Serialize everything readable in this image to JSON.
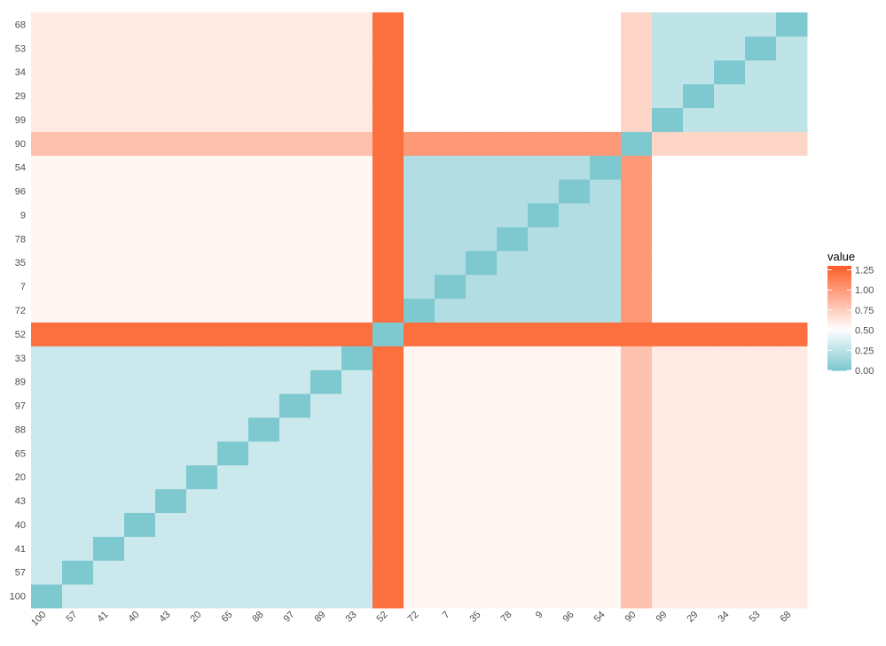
{
  "chart_data": {
    "type": "heatmap",
    "categories": [
      "100",
      "57",
      "41",
      "40",
      "43",
      "20",
      "65",
      "88",
      "97",
      "89",
      "33",
      "52",
      "72",
      "7",
      "35",
      "78",
      "9",
      "96",
      "54",
      "90",
      "99",
      "29",
      "34",
      "53",
      "68"
    ],
    "values": [
      [
        0,
        0.3,
        0.3,
        0.3,
        0.3,
        0.3,
        0.3,
        0.3,
        0.3,
        0.3,
        0.3,
        1.2,
        0.55,
        0.55,
        0.55,
        0.55,
        0.55,
        0.55,
        0.55,
        0.8,
        0.6,
        0.6,
        0.6,
        0.6,
        0.6
      ],
      [
        0.3,
        0,
        0.3,
        0.3,
        0.3,
        0.3,
        0.3,
        0.3,
        0.3,
        0.3,
        0.3,
        1.2,
        0.55,
        0.55,
        0.55,
        0.55,
        0.55,
        0.55,
        0.55,
        0.8,
        0.6,
        0.6,
        0.6,
        0.6,
        0.6
      ],
      [
        0.3,
        0.3,
        0,
        0.3,
        0.3,
        0.3,
        0.3,
        0.3,
        0.3,
        0.3,
        0.3,
        1.2,
        0.55,
        0.55,
        0.55,
        0.55,
        0.55,
        0.55,
        0.55,
        0.8,
        0.6,
        0.6,
        0.6,
        0.6,
        0.6
      ],
      [
        0.3,
        0.3,
        0.3,
        0,
        0.3,
        0.3,
        0.3,
        0.3,
        0.3,
        0.3,
        0.3,
        1.2,
        0.55,
        0.55,
        0.55,
        0.55,
        0.55,
        0.55,
        0.55,
        0.8,
        0.6,
        0.6,
        0.6,
        0.6,
        0.6
      ],
      [
        0.3,
        0.3,
        0.3,
        0.3,
        0,
        0.3,
        0.3,
        0.3,
        0.3,
        0.3,
        0.3,
        1.2,
        0.55,
        0.55,
        0.55,
        0.55,
        0.55,
        0.55,
        0.55,
        0.8,
        0.6,
        0.6,
        0.6,
        0.6,
        0.6
      ],
      [
        0.3,
        0.3,
        0.3,
        0.3,
        0.3,
        0,
        0.3,
        0.3,
        0.3,
        0.3,
        0.3,
        1.2,
        0.55,
        0.55,
        0.55,
        0.55,
        0.55,
        0.55,
        0.55,
        0.8,
        0.6,
        0.6,
        0.6,
        0.6,
        0.6
      ],
      [
        0.3,
        0.3,
        0.3,
        0.3,
        0.3,
        0.3,
        0,
        0.3,
        0.3,
        0.3,
        0.3,
        1.2,
        0.55,
        0.55,
        0.55,
        0.55,
        0.55,
        0.55,
        0.55,
        0.8,
        0.6,
        0.6,
        0.6,
        0.6,
        0.6
      ],
      [
        0.3,
        0.3,
        0.3,
        0.3,
        0.3,
        0.3,
        0.3,
        0,
        0.3,
        0.3,
        0.3,
        1.2,
        0.55,
        0.55,
        0.55,
        0.55,
        0.55,
        0.55,
        0.55,
        0.8,
        0.6,
        0.6,
        0.6,
        0.6,
        0.6
      ],
      [
        0.3,
        0.3,
        0.3,
        0.3,
        0.3,
        0.3,
        0.3,
        0.3,
        0,
        0.3,
        0.3,
        1.2,
        0.55,
        0.55,
        0.55,
        0.55,
        0.55,
        0.55,
        0.55,
        0.8,
        0.6,
        0.6,
        0.6,
        0.6,
        0.6
      ],
      [
        0.3,
        0.3,
        0.3,
        0.3,
        0.3,
        0.3,
        0.3,
        0.3,
        0.3,
        0,
        0.3,
        1.2,
        0.55,
        0.55,
        0.55,
        0.55,
        0.55,
        0.55,
        0.55,
        0.8,
        0.6,
        0.6,
        0.6,
        0.6,
        0.6
      ],
      [
        0.3,
        0.3,
        0.3,
        0.3,
        0.3,
        0.3,
        0.3,
        0.3,
        0.3,
        0.3,
        0,
        1.2,
        0.55,
        0.55,
        0.55,
        0.55,
        0.55,
        0.55,
        0.55,
        0.8,
        0.6,
        0.6,
        0.6,
        0.6,
        0.6
      ],
      [
        1.2,
        1.2,
        1.2,
        1.2,
        1.2,
        1.2,
        1.2,
        1.2,
        1.2,
        1.2,
        1.2,
        0,
        1.2,
        1.2,
        1.2,
        1.2,
        1.2,
        1.2,
        1.2,
        1.2,
        1.2,
        1.2,
        1.2,
        1.2,
        1.2
      ],
      [
        0.55,
        0.55,
        0.55,
        0.55,
        0.55,
        0.55,
        0.55,
        0.55,
        0.55,
        0.55,
        0.55,
        1.2,
        0,
        0.2,
        0.2,
        0.2,
        0.2,
        0.2,
        0.2,
        1.0,
        0.5,
        0.5,
        0.5,
        0.5,
        0.5
      ],
      [
        0.55,
        0.55,
        0.55,
        0.55,
        0.55,
        0.55,
        0.55,
        0.55,
        0.55,
        0.55,
        0.55,
        1.2,
        0.2,
        0,
        0.2,
        0.2,
        0.2,
        0.2,
        0.2,
        1.0,
        0.5,
        0.5,
        0.5,
        0.5,
        0.5
      ],
      [
        0.55,
        0.55,
        0.55,
        0.55,
        0.55,
        0.55,
        0.55,
        0.55,
        0.55,
        0.55,
        0.55,
        1.2,
        0.2,
        0.2,
        0,
        0.2,
        0.2,
        0.2,
        0.2,
        1.0,
        0.5,
        0.5,
        0.5,
        0.5,
        0.5
      ],
      [
        0.55,
        0.55,
        0.55,
        0.55,
        0.55,
        0.55,
        0.55,
        0.55,
        0.55,
        0.55,
        0.55,
        1.2,
        0.2,
        0.2,
        0.2,
        0,
        0.2,
        0.2,
        0.2,
        1.0,
        0.5,
        0.5,
        0.5,
        0.5,
        0.5
      ],
      [
        0.55,
        0.55,
        0.55,
        0.55,
        0.55,
        0.55,
        0.55,
        0.55,
        0.55,
        0.55,
        0.55,
        1.2,
        0.2,
        0.2,
        0.2,
        0.2,
        0,
        0.2,
        0.2,
        1.0,
        0.5,
        0.5,
        0.5,
        0.5,
        0.5
      ],
      [
        0.55,
        0.55,
        0.55,
        0.55,
        0.55,
        0.55,
        0.55,
        0.55,
        0.55,
        0.55,
        0.55,
        1.2,
        0.2,
        0.2,
        0.2,
        0.2,
        0.2,
        0,
        0.2,
        1.0,
        0.5,
        0.5,
        0.5,
        0.5,
        0.5
      ],
      [
        0.55,
        0.55,
        0.55,
        0.55,
        0.55,
        0.55,
        0.55,
        0.55,
        0.55,
        0.55,
        0.55,
        1.2,
        0.2,
        0.2,
        0.2,
        0.2,
        0.2,
        0.2,
        0,
        1.0,
        0.5,
        0.5,
        0.5,
        0.5,
        0.5
      ],
      [
        0.8,
        0.8,
        0.8,
        0.8,
        0.8,
        0.8,
        0.8,
        0.8,
        0.8,
        0.8,
        0.8,
        1.2,
        1.0,
        1.0,
        1.0,
        1.0,
        1.0,
        1.0,
        1.0,
        0,
        0.7,
        0.7,
        0.7,
        0.7,
        0.7
      ],
      [
        0.6,
        0.6,
        0.6,
        0.6,
        0.6,
        0.6,
        0.6,
        0.6,
        0.6,
        0.6,
        0.6,
        1.2,
        0.5,
        0.5,
        0.5,
        0.5,
        0.5,
        0.5,
        0.5,
        0.7,
        0,
        0.25,
        0.25,
        0.25,
        0.25
      ],
      [
        0.6,
        0.6,
        0.6,
        0.6,
        0.6,
        0.6,
        0.6,
        0.6,
        0.6,
        0.6,
        0.6,
        1.2,
        0.5,
        0.5,
        0.5,
        0.5,
        0.5,
        0.5,
        0.5,
        0.7,
        0.25,
        0,
        0.25,
        0.25,
        0.25
      ],
      [
        0.6,
        0.6,
        0.6,
        0.6,
        0.6,
        0.6,
        0.6,
        0.6,
        0.6,
        0.6,
        0.6,
        1.2,
        0.5,
        0.5,
        0.5,
        0.5,
        0.5,
        0.5,
        0.5,
        0.7,
        0.25,
        0.25,
        0,
        0.25,
        0.25
      ],
      [
        0.6,
        0.6,
        0.6,
        0.6,
        0.6,
        0.6,
        0.6,
        0.6,
        0.6,
        0.6,
        0.6,
        1.2,
        0.5,
        0.5,
        0.5,
        0.5,
        0.5,
        0.5,
        0.5,
        0.7,
        0.25,
        0.25,
        0.25,
        0,
        0.25
      ],
      [
        0.6,
        0.6,
        0.6,
        0.6,
        0.6,
        0.6,
        0.6,
        0.6,
        0.6,
        0.6,
        0.6,
        1.2,
        0.5,
        0.5,
        0.5,
        0.5,
        0.5,
        0.5,
        0.5,
        0.7,
        0.25,
        0.25,
        0.25,
        0.25,
        0
      ]
    ],
    "legend_title": "value",
    "clim": [
      0,
      1.3
    ],
    "midpoint": 0.5,
    "colors": [
      "#7ec8d0",
      "#ffffff",
      "#fc5a24"
    ],
    "legend_ticks": [
      {
        "value": 0,
        "label": "0.00"
      },
      {
        "value": 0.25,
        "label": "0.25"
      },
      {
        "value": 0.5,
        "label": "0.50"
      },
      {
        "value": 0.75,
        "label": "0.75"
      },
      {
        "value": 1,
        "label": "1.00"
      },
      {
        "value": 1.25,
        "label": "1.25"
      }
    ]
  }
}
